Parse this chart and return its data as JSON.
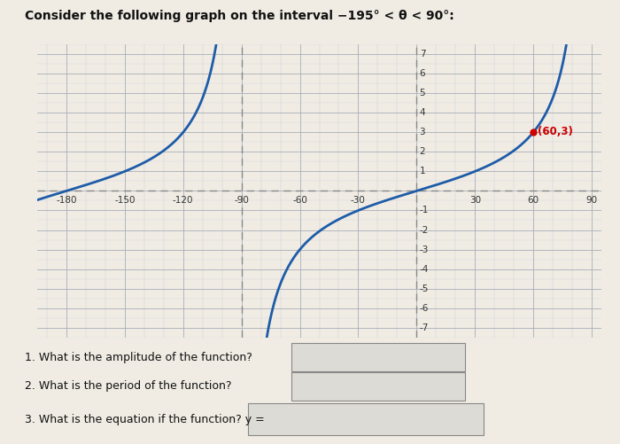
{
  "title_plain": "Consider the following graph on the interval ",
  "title_interval": "-195° < x < 90°:",
  "xlim": [
    -195,
    95
  ],
  "ylim": [
    -7.5,
    7.5
  ],
  "xticks": [
    -180,
    -150,
    -120,
    -90,
    -60,
    -30,
    30,
    60,
    90
  ],
  "yticks": [
    -7,
    -6,
    -5,
    -4,
    -3,
    -2,
    -1,
    1,
    2,
    3,
    4,
    5,
    6,
    7
  ],
  "point": [
    60,
    3
  ],
  "point_label": "(60,3)",
  "curve_color": "#1e5ca8",
  "point_color": "#cc0000",
  "asymptote_x": -90,
  "background_color": "#f0ece4",
  "grid_minor_color": "#c8cdd6",
  "grid_major_color": "#a8adb8",
  "questions": [
    "1. What is the amplitude of the function?",
    "2. What is the period of the function?",
    "3. What is the equation if the function? y ="
  ],
  "amplitude_factor": 1.7320508075688772,
  "axis_line_color": "#888888"
}
